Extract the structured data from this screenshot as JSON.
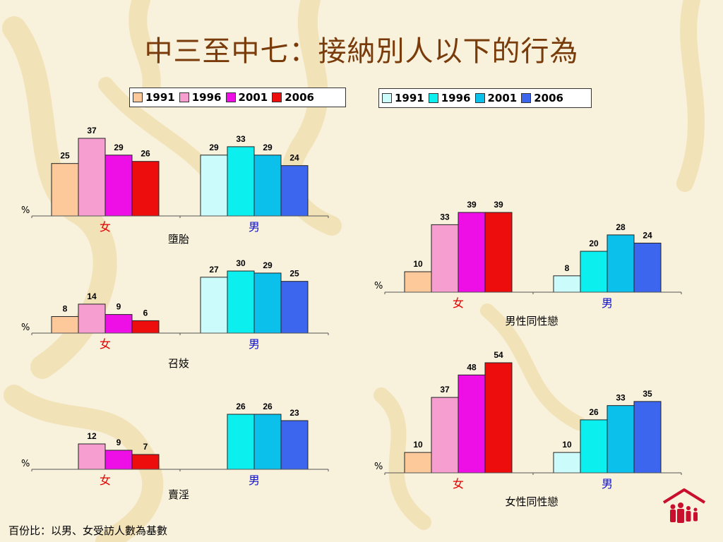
{
  "title": "中三至中七：接納別人以下的行為",
  "footnote": "百份比：以男、女受訪人數為基數",
  "legend_female": {
    "items": [
      {
        "label": "1991",
        "color": "#fdc99a"
      },
      {
        "label": "1996",
        "color": "#f79ed0"
      },
      {
        "label": "2001",
        "color": "#ee0ee6"
      },
      {
        "label": "2006",
        "color": "#ed0d0d"
      }
    ]
  },
  "legend_male": {
    "items": [
      {
        "label": "1991",
        "color": "#ccfbfc"
      },
      {
        "label": "1996",
        "color": "#0cefef"
      },
      {
        "label": "2001",
        "color": "#0bc1ec"
      },
      {
        "label": "2006",
        "color": "#3c66ee"
      }
    ]
  },
  "chart_data": [
    {
      "type": "bar",
      "title": "墮胎",
      "ylabel": "%",
      "categories": [
        "女",
        "男"
      ],
      "ylim": [
        0,
        37
      ],
      "series_female": [
        25,
        37,
        29,
        26
      ],
      "series_male": [
        29,
        33,
        29,
        24
      ]
    },
    {
      "type": "bar",
      "title": "召妓",
      "ylabel": "%",
      "categories": [
        "女",
        "男"
      ],
      "ylim": [
        0,
        30
      ],
      "series_female": [
        8,
        14,
        9,
        6
      ],
      "series_male": [
        27,
        30,
        29,
        25
      ]
    },
    {
      "type": "bar",
      "title": "賣淫",
      "ylabel": "%",
      "categories": [
        "女",
        "男"
      ],
      "ylim": [
        0,
        26
      ],
      "series_female": [
        null,
        12,
        9,
        7
      ],
      "series_male": [
        null,
        26,
        26,
        23
      ]
    },
    {
      "type": "bar",
      "title": "男性同性戀",
      "ylabel": "%",
      "categories": [
        "女",
        "男"
      ],
      "ylim": [
        0,
        39
      ],
      "series_female": [
        10,
        33,
        39,
        39
      ],
      "series_male": [
        8,
        20,
        28,
        24
      ]
    },
    {
      "type": "bar",
      "title": "女性同性戀",
      "ylabel": "%",
      "categories": [
        "女",
        "男"
      ],
      "ylim": [
        0,
        54
      ],
      "series_female": [
        10,
        37,
        48,
        54
      ],
      "series_male": [
        10,
        26,
        33,
        35
      ]
    }
  ]
}
